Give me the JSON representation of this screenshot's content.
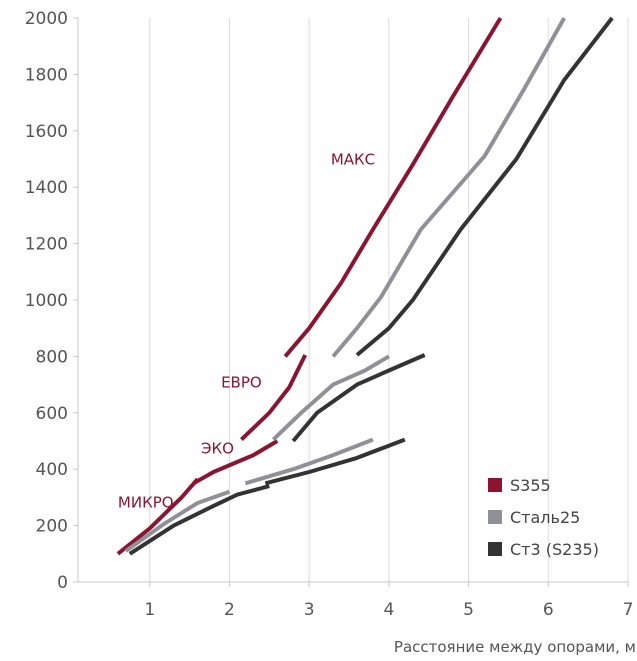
{
  "chart_data": {
    "type": "line",
    "title": "",
    "xlabel": "Расстояние между опорами, м",
    "ylabel": "",
    "xlim": [
      0.1,
      7
    ],
    "ylim": [
      0,
      2000
    ],
    "x_ticks": [
      1,
      2,
      3,
      4,
      5,
      6,
      7
    ],
    "y_ticks": [
      0,
      200,
      400,
      600,
      800,
      1000,
      1200,
      1400,
      1600,
      1800,
      2000
    ],
    "grid": "vertical",
    "legend_position": "bottom-right",
    "colors": {
      "S355": "#8b1530",
      "Сталь25": "#8f9197",
      "Ст3 (S235)": "#333333",
      "axis": "#c8c8c8",
      "tick_text": "#555555"
    },
    "segment_labels": [
      {
        "text": "МИКРО",
        "x": 0.95,
        "y": 265
      },
      {
        "text": "ЭКО",
        "x": 1.85,
        "y": 455
      },
      {
        "text": "ЕВРО",
        "x": 2.15,
        "y": 690
      },
      {
        "text": "МАКС",
        "x": 3.55,
        "y": 1480
      }
    ],
    "series": [
      {
        "name": "S355",
        "segments": [
          [
            [
              0.6,
              100
            ],
            [
              1.0,
              190
            ],
            [
              1.4,
              300
            ],
            [
              1.6,
              365
            ]
          ],
          [
            [
              1.55,
              350
            ],
            [
              1.8,
              390
            ],
            [
              2.3,
              450
            ],
            [
              2.6,
              500
            ]
          ],
          [
            [
              2.15,
              505
            ],
            [
              2.5,
              600
            ],
            [
              2.75,
              690
            ],
            [
              2.95,
              805
            ]
          ],
          [
            [
              2.7,
              800
            ],
            [
              3.0,
              900
            ],
            [
              3.4,
              1060
            ],
            [
              3.8,
              1250
            ],
            [
              4.3,
              1480
            ],
            [
              4.8,
              1720
            ],
            [
              5.4,
              2000
            ]
          ]
        ]
      },
      {
        "name": "Сталь25",
        "segments": [
          [
            [
              0.7,
              110
            ],
            [
              1.2,
              210
            ],
            [
              1.6,
              280
            ],
            [
              2.0,
              320
            ]
          ],
          [
            [
              2.2,
              350
            ],
            [
              2.8,
              400
            ],
            [
              3.3,
              450
            ],
            [
              3.8,
              505
            ]
          ],
          [
            [
              2.55,
              505
            ],
            [
              2.9,
              600
            ],
            [
              3.3,
              700
            ],
            [
              3.7,
              750
            ],
            [
              4.0,
              800
            ]
          ],
          [
            [
              3.3,
              800
            ],
            [
              3.6,
              900
            ],
            [
              3.9,
              1010
            ],
            [
              4.4,
              1250
            ],
            [
              5.2,
              1510
            ],
            [
              5.7,
              1750
            ],
            [
              6.2,
              2000
            ]
          ]
        ]
      },
      {
        "name": "Ст3 (S235)",
        "segments": [
          [
            [
              0.75,
              100
            ],
            [
              1.3,
              200
            ],
            [
              1.8,
              270
            ],
            [
              2.1,
              310
            ],
            [
              2.5,
              340
            ]
          ],
          [
            [
              2.45,
              350
            ],
            [
              3.0,
              390
            ],
            [
              3.6,
              440
            ],
            [
              4.2,
              505
            ]
          ],
          [
            [
              2.8,
              500
            ],
            [
              3.1,
              600
            ],
            [
              3.6,
              700
            ],
            [
              4.0,
              750
            ],
            [
              4.45,
              805
            ]
          ],
          [
            [
              3.6,
              805
            ],
            [
              4.0,
              900
            ],
            [
              4.3,
              1000
            ],
            [
              4.9,
              1250
            ],
            [
              5.6,
              1500
            ],
            [
              6.2,
              1780
            ],
            [
              6.8,
              2000
            ]
          ]
        ]
      }
    ]
  }
}
